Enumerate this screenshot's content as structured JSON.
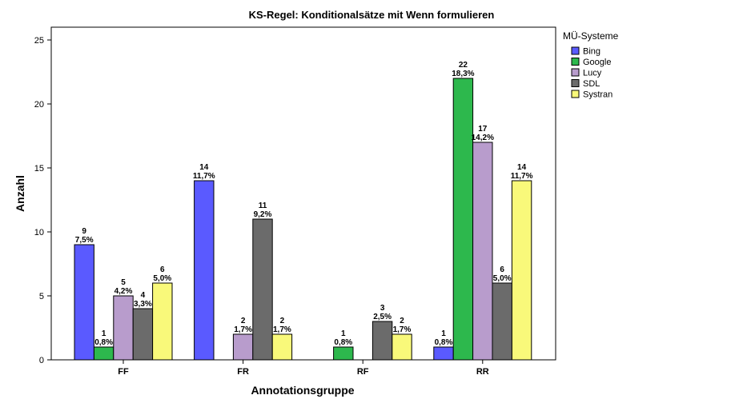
{
  "chart_data": {
    "type": "bar",
    "title": "KS-Regel: Konditionalsätze mit Wenn formulieren",
    "xlabel": "Annotationsgruppe",
    "ylabel": "Anzahl",
    "ylim": [
      0,
      26
    ],
    "yticks": [
      0,
      5,
      10,
      15,
      20,
      25
    ],
    "categories": [
      "FF",
      "FR",
      "RF",
      "RR"
    ],
    "legend": {
      "title": "MÜ-Systeme",
      "position": "right"
    },
    "series": [
      {
        "name": "Bing",
        "color": "#5a5aff",
        "values": [
          9,
          14,
          null,
          1
        ],
        "percent_labels": [
          "7,5%",
          "11,7%",
          null,
          "0,8%"
        ]
      },
      {
        "name": "Google",
        "color": "#2db84d",
        "values": [
          1,
          null,
          1,
          22
        ],
        "percent_labels": [
          "0,8%",
          null,
          "0,8%",
          "18,3%"
        ]
      },
      {
        "name": "Lucy",
        "color": "#b89ccc",
        "values": [
          5,
          2,
          null,
          17
        ],
        "percent_labels": [
          "4,2%",
          "1,7%",
          null,
          "14,2%"
        ]
      },
      {
        "name": "SDL",
        "color": "#6b6b6b",
        "values": [
          4,
          11,
          3,
          6
        ],
        "percent_labels": [
          "3,3%",
          "9,2%",
          "2,5%",
          "5,0%"
        ]
      },
      {
        "name": "Systran",
        "color": "#f9f97a",
        "values": [
          6,
          2,
          2,
          14
        ],
        "percent_labels": [
          "5,0%",
          "1,7%",
          "1,7%",
          "11,7%"
        ]
      }
    ]
  }
}
